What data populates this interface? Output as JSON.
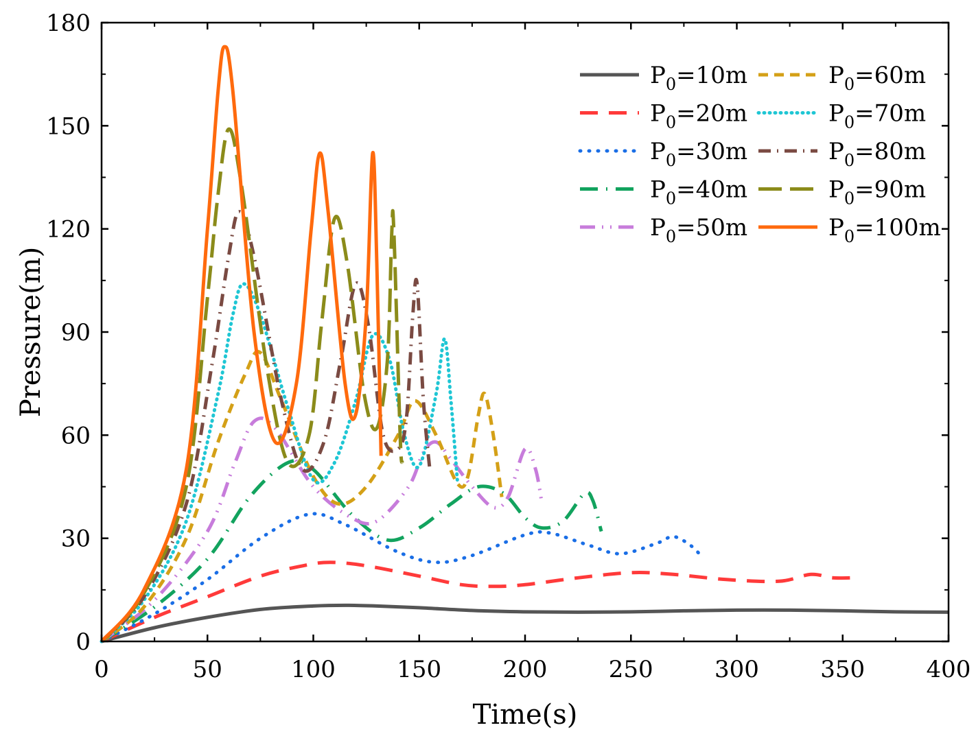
{
  "chart_data": {
    "type": "line",
    "title": "",
    "xlabel": "Time(s)",
    "ylabel": "Pressure(m)",
    "xlim": [
      0,
      400
    ],
    "ylim": [
      0,
      180
    ],
    "xticks": [
      0,
      50,
      100,
      150,
      200,
      250,
      300,
      350,
      400
    ],
    "yticks": [
      0,
      30,
      60,
      90,
      120,
      150,
      180
    ],
    "xtick_labels": [
      "0",
      "50",
      "100",
      "150",
      "200",
      "250",
      "300",
      "350",
      "400"
    ],
    "ytick_labels": [
      "0",
      "30",
      "60",
      "90",
      "120",
      "150",
      "180"
    ],
    "grid": false,
    "legend_position": "top-right",
    "series": [
      {
        "name": "P0=10m",
        "label_main": "P",
        "label_sub": "0",
        "label_rest": "=10m",
        "color": "#555555",
        "style": "solid",
        "points": [
          [
            0,
            0
          ],
          [
            25,
            4
          ],
          [
            50,
            7
          ],
          [
            75,
            9.3
          ],
          [
            100,
            10.3
          ],
          [
            115,
            10.5
          ],
          [
            130,
            10.3
          ],
          [
            150,
            9.8
          ],
          [
            175,
            9
          ],
          [
            200,
            8.6
          ],
          [
            225,
            8.5
          ],
          [
            250,
            8.6
          ],
          [
            275,
            8.9
          ],
          [
            300,
            9.1
          ],
          [
            325,
            9.1
          ],
          [
            350,
            8.9
          ],
          [
            375,
            8.6
          ],
          [
            400,
            8.5
          ]
        ]
      },
      {
        "name": "P0=20m",
        "label_main": "P",
        "label_sub": "0",
        "label_rest": "=20m",
        "color": "#ff3a3a",
        "style": "dash",
        "points": [
          [
            0,
            0
          ],
          [
            25,
            7
          ],
          [
            50,
            13
          ],
          [
            75,
            19
          ],
          [
            95,
            22
          ],
          [
            108,
            23
          ],
          [
            125,
            22
          ],
          [
            150,
            19
          ],
          [
            170,
            16.5
          ],
          [
            185,
            16
          ],
          [
            200,
            16.5
          ],
          [
            225,
            18.5
          ],
          [
            250,
            20
          ],
          [
            270,
            19.5
          ],
          [
            295,
            18
          ],
          [
            320,
            17.5
          ],
          [
            335,
            19.5
          ],
          [
            345,
            18.5
          ],
          [
            355,
            18.5
          ]
        ]
      },
      {
        "name": "P0=30m",
        "label_main": "P",
        "label_sub": "0",
        "label_rest": "=30m",
        "color": "#1a6ee6",
        "style": "dot",
        "points": [
          [
            0,
            0
          ],
          [
            25,
            8
          ],
          [
            50,
            18
          ],
          [
            75,
            30
          ],
          [
            98,
            37
          ],
          [
            115,
            34
          ],
          [
            140,
            26
          ],
          [
            158,
            23
          ],
          [
            175,
            25
          ],
          [
            200,
            31
          ],
          [
            212,
            31.5
          ],
          [
            230,
            28
          ],
          [
            245,
            25.5
          ],
          [
            262,
            28.5
          ],
          [
            270,
            30.5
          ],
          [
            278,
            28
          ],
          [
            283,
            25
          ]
        ]
      },
      {
        "name": "P0=40m",
        "label_main": "P",
        "label_sub": "0",
        "label_rest": "=40m",
        "color": "#12a35e",
        "style": "dashdot",
        "points": [
          [
            0,
            0
          ],
          [
            25,
            10
          ],
          [
            50,
            24
          ],
          [
            70,
            42
          ],
          [
            88,
            52
          ],
          [
            100,
            50
          ],
          [
            118,
            37
          ],
          [
            135,
            29.5
          ],
          [
            150,
            33
          ],
          [
            165,
            40
          ],
          [
            178,
            45
          ],
          [
            190,
            43
          ],
          [
            200,
            36
          ],
          [
            208,
            33
          ],
          [
            218,
            35
          ],
          [
            228,
            43
          ],
          [
            232,
            41
          ],
          [
            236,
            32
          ]
        ]
      },
      {
        "name": "P0=50m",
        "label_main": "P",
        "label_sub": "0",
        "label_rest": "=50m",
        "color": "#c77cdb",
        "style": "dashdotdot",
        "points": [
          [
            0,
            0
          ],
          [
            25,
            12
          ],
          [
            50,
            32
          ],
          [
            63,
            52
          ],
          [
            72,
            64
          ],
          [
            82,
            62
          ],
          [
            100,
            45
          ],
          [
            118,
            36
          ],
          [
            130,
            35
          ],
          [
            145,
            45
          ],
          [
            152,
            55
          ],
          [
            158,
            58
          ],
          [
            165,
            53
          ],
          [
            175,
            45
          ],
          [
            185,
            39
          ],
          [
            192,
            42
          ],
          [
            200,
            56
          ],
          [
            205,
            50
          ],
          [
            208,
            40
          ]
        ]
      },
      {
        "name": "P0=60m",
        "label_main": "P",
        "label_sub": "0",
        "label_rest": "=60m",
        "color": "#d4a017",
        "style": "shortdash",
        "points": [
          [
            0,
            0
          ],
          [
            20,
            10
          ],
          [
            40,
            30
          ],
          [
            55,
            58
          ],
          [
            68,
            78
          ],
          [
            75,
            84
          ],
          [
            85,
            70
          ],
          [
            100,
            48
          ],
          [
            112,
            40
          ],
          [
            125,
            45
          ],
          [
            140,
            60
          ],
          [
            148,
            70
          ],
          [
            158,
            60
          ],
          [
            168,
            46
          ],
          [
            173,
            48
          ],
          [
            178,
            66
          ],
          [
            181,
            72
          ],
          [
            185,
            60
          ],
          [
            189,
            42
          ]
        ]
      },
      {
        "name": "P0=70m",
        "label_main": "P",
        "label_sub": "0",
        "label_rest": "=70m",
        "color": "#1fc6d4",
        "style": "densedot",
        "points": [
          [
            0,
            0
          ],
          [
            20,
            12
          ],
          [
            40,
            35
          ],
          [
            55,
            72
          ],
          [
            62,
            95
          ],
          [
            67,
            104
          ],
          [
            75,
            95
          ],
          [
            88,
            68
          ],
          [
            100,
            47
          ],
          [
            110,
            52
          ],
          [
            120,
            70
          ],
          [
            128,
            89
          ],
          [
            136,
            82
          ],
          [
            143,
            60
          ],
          [
            150,
            51
          ],
          [
            158,
            72
          ],
          [
            162,
            88
          ],
          [
            165,
            70
          ],
          [
            168,
            47
          ]
        ]
      },
      {
        "name": "P0=80m",
        "label_main": "P",
        "label_sub": "0",
        "label_rest": "=80m",
        "color": "#7a4a42",
        "style": "dashdot2",
        "points": [
          [
            0,
            0
          ],
          [
            20,
            13
          ],
          [
            40,
            40
          ],
          [
            52,
            80
          ],
          [
            60,
            112
          ],
          [
            65,
            125
          ],
          [
            72,
            112
          ],
          [
            85,
            70
          ],
          [
            95,
            50
          ],
          [
            105,
            58
          ],
          [
            113,
            82
          ],
          [
            120,
            104
          ],
          [
            126,
            92
          ],
          [
            133,
            60
          ],
          [
            140,
            56
          ],
          [
            144,
            65
          ],
          [
            147,
            95
          ],
          [
            149,
            104
          ],
          [
            152,
            70
          ],
          [
            155,
            50
          ]
        ]
      },
      {
        "name": "P0=90m",
        "label_main": "P",
        "label_sub": "0",
        "label_rest": "=90m",
        "color": "#8b8b1a",
        "style": "longdash",
        "points": [
          [
            0,
            0
          ],
          [
            20,
            14
          ],
          [
            40,
            45
          ],
          [
            50,
            100
          ],
          [
            55,
            130
          ],
          [
            60,
            149
          ],
          [
            66,
            133
          ],
          [
            78,
            80
          ],
          [
            88,
            52
          ],
          [
            98,
            60
          ],
          [
            104,
            93
          ],
          [
            110,
            123
          ],
          [
            116,
            110
          ],
          [
            124,
            72
          ],
          [
            130,
            62
          ],
          [
            135,
            82
          ],
          [
            137,
            118
          ],
          [
            138,
            120
          ],
          [
            141,
            60
          ],
          [
            142,
            52
          ]
        ]
      },
      {
        "name": "P0=100m",
        "label_main": "P",
        "label_sub": "0",
        "label_rest": "=100m",
        "color": "#ff6a0d",
        "style": "solid",
        "points": [
          [
            0,
            0
          ],
          [
            20,
            15
          ],
          [
            40,
            50
          ],
          [
            50,
            120
          ],
          [
            55,
            160
          ],
          [
            58,
            173
          ],
          [
            62,
            160
          ],
          [
            72,
            90
          ],
          [
            82,
            58
          ],
          [
            92,
            75
          ],
          [
            99,
            120
          ],
          [
            103,
            142
          ],
          [
            107,
            125
          ],
          [
            115,
            75
          ],
          [
            120,
            66
          ],
          [
            125,
            95
          ],
          [
            128,
            142
          ],
          [
            130,
            110
          ],
          [
            132,
            54
          ]
        ]
      }
    ]
  }
}
